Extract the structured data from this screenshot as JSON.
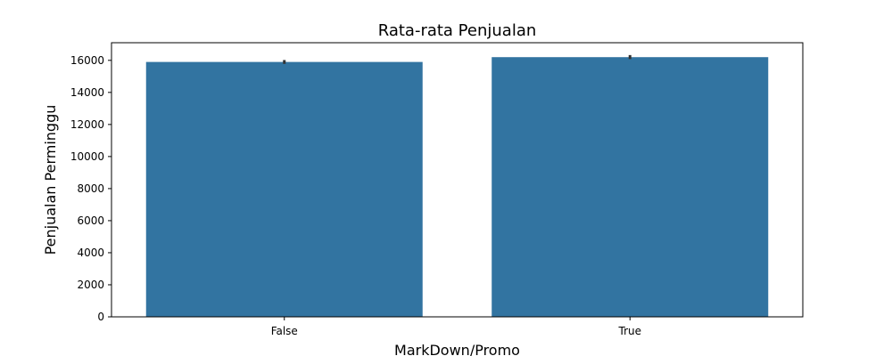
{
  "chart_data": {
    "type": "bar",
    "title": "Rata-rata Penjualan",
    "xlabel": "MarkDown/Promo",
    "ylabel": "Penjualan Perminggu",
    "categories": [
      "False",
      "True"
    ],
    "values": [
      15900,
      16200
    ],
    "error_bars": [
      [
        15780,
        16020
      ],
      [
        16080,
        16330
      ]
    ],
    "ylim": [
      0,
      17100
    ],
    "yticks": [
      0,
      2000,
      4000,
      6000,
      8000,
      10000,
      12000,
      14000,
      16000
    ],
    "grid": false,
    "colors": {
      "bar": "#3274a1",
      "error_bar": "#333333"
    }
  }
}
